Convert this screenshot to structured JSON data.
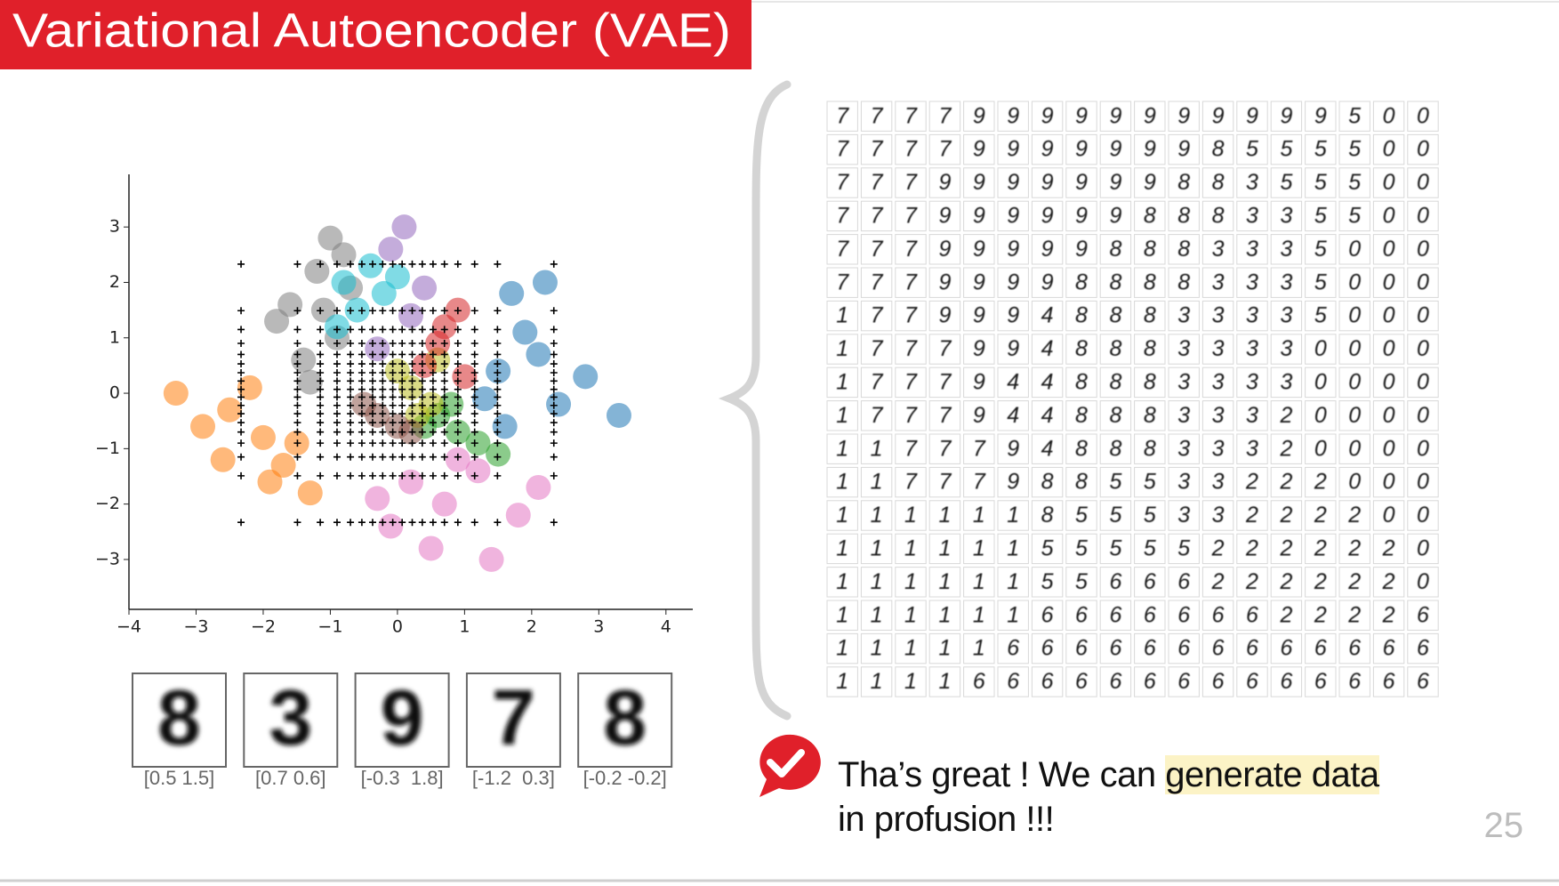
{
  "title": "Variational Autoencoder (VAE)",
  "chart_data": {
    "type": "scatter",
    "xlim": [
      -4,
      4.4
    ],
    "ylim": [
      -3.9,
      3.95
    ],
    "xticks": [
      {
        "value": -4,
        "label": "−4"
      },
      {
        "value": -3,
        "label": "−3"
      },
      {
        "value": -2,
        "label": "−2"
      },
      {
        "value": -1,
        "label": "−1"
      },
      0,
      1,
      2,
      3,
      4
    ],
    "yticks": [
      {
        "value": -3,
        "label": "−3"
      },
      {
        "value": -2,
        "label": "−2"
      },
      {
        "value": -1,
        "label": "−1"
      },
      0,
      1,
      2,
      3
    ],
    "series": [
      {
        "color": "#7f7f7f",
        "x": [
          -1.6,
          -1.2,
          -0.9,
          -1.4,
          -1.0,
          -1.8,
          -0.7,
          -1.3,
          -1.1,
          -0.8
        ],
        "values": [
          1.6,
          2.2,
          1.0,
          0.6,
          2.8,
          1.3,
          1.9,
          0.2,
          1.5,
          2.5
        ]
      },
      {
        "color": "#ff7f0e",
        "x": [
          -2.5,
          -2.0,
          -1.7,
          -2.9,
          -1.3,
          -2.2,
          -1.5,
          -3.3,
          -1.9,
          -2.6
        ],
        "values": [
          -0.3,
          -0.8,
          -1.3,
          -0.6,
          -1.8,
          0.1,
          -0.9,
          0.0,
          -1.6,
          -1.2
        ]
      },
      {
        "color": "#1f77b4",
        "x": [
          1.5,
          1.9,
          2.4,
          1.3,
          2.1,
          2.8,
          1.7,
          3.3,
          2.2,
          1.6
        ],
        "values": [
          0.4,
          1.1,
          -0.2,
          -0.1,
          0.7,
          0.3,
          1.8,
          -0.4,
          2.0,
          -0.6
        ]
      },
      {
        "color": "#e377c2",
        "x": [
          0.2,
          0.7,
          1.2,
          -0.3,
          1.8,
          0.5,
          0.9,
          2.1,
          -0.1,
          1.4
        ],
        "values": [
          -1.6,
          -2.0,
          -1.4,
          -1.9,
          -2.2,
          -2.8,
          -1.2,
          -1.7,
          -2.4,
          -3.0
        ]
      },
      {
        "color": "#2ca02c",
        "x": [
          0.6,
          0.9,
          1.2,
          0.4,
          1.5,
          0.8
        ],
        "values": [
          -0.4,
          -0.7,
          -0.9,
          -0.6,
          -1.1,
          -0.2
        ]
      },
      {
        "color": "#17becf",
        "x": [
          -0.8,
          -0.4,
          -0.6,
          -0.2,
          -0.9,
          0.0
        ],
        "values": [
          2.0,
          2.3,
          1.5,
          1.8,
          1.2,
          2.1
        ]
      },
      {
        "color": "#9467bd",
        "x": [
          -0.1,
          0.2,
          -0.3,
          0.1,
          0.4
        ],
        "values": [
          2.6,
          1.4,
          0.8,
          3.0,
          1.9
        ]
      },
      {
        "color": "#bcbd22",
        "x": [
          0.2,
          0.5,
          0.0,
          0.6,
          0.3
        ],
        "values": [
          0.1,
          -0.2,
          0.4,
          0.6,
          -0.4
        ]
      },
      {
        "color": "#8c564b",
        "x": [
          -0.3,
          0.0,
          -0.5,
          0.2
        ],
        "values": [
          -0.4,
          -0.6,
          -0.2,
          -0.7
        ]
      },
      {
        "color": "#d62728",
        "x": [
          0.6,
          0.9,
          0.4,
          1.0,
          0.7
        ],
        "values": [
          0.9,
          1.5,
          0.5,
          0.3,
          1.2
        ]
      }
    ],
    "grid_points": {
      "color": "#000000",
      "x": [
        -2.33,
        -1.49,
        -1.15,
        -0.9,
        -0.7,
        -0.53,
        -0.37,
        -0.22,
        -0.07,
        0.07,
        0.22,
        0.37,
        0.53,
        0.7,
        0.9,
        1.15,
        1.49,
        2.33
      ],
      "y": [
        -2.33,
        -1.49,
        -1.15,
        -0.9,
        -0.7,
        -0.53,
        -0.37,
        -0.22,
        -0.07,
        0.07,
        0.22,
        0.37,
        0.53,
        0.7,
        0.9,
        1.15,
        1.49,
        2.33
      ]
    }
  },
  "digit_grid": {
    "rows": [
      "777799999999999500",
      "777799999998555500",
      "777999999988355500",
      "777999999888335500",
      "777999998883335000",
      "777999988883335000",
      "177999488833335000",
      "177799488833330000",
      "177794488833330000",
      "177794488833320000",
      "117779488833320000",
      "117779885533222000",
      "111111855533222200",
      "111111555552222220",
      "111111556662222220",
      "111111666666622226",
      "111116666666666666",
      "111166666666666666"
    ]
  },
  "samples": [
    {
      "digit": "8",
      "code": "[0.5 1.5]"
    },
    {
      "digit": "3",
      "code": "[0.7 0.6]"
    },
    {
      "digit": "9",
      "code": "[-0.3  1.8]"
    },
    {
      "digit": "7",
      "code": "[-1.2  0.3]"
    },
    {
      "digit": "8",
      "code": "[-0.2 -0.2]"
    }
  ],
  "message": {
    "line1": "Tha’s great ! We can ",
    "highlight": "generate data",
    "line2": "in profusion !!!"
  },
  "page_number": "25"
}
